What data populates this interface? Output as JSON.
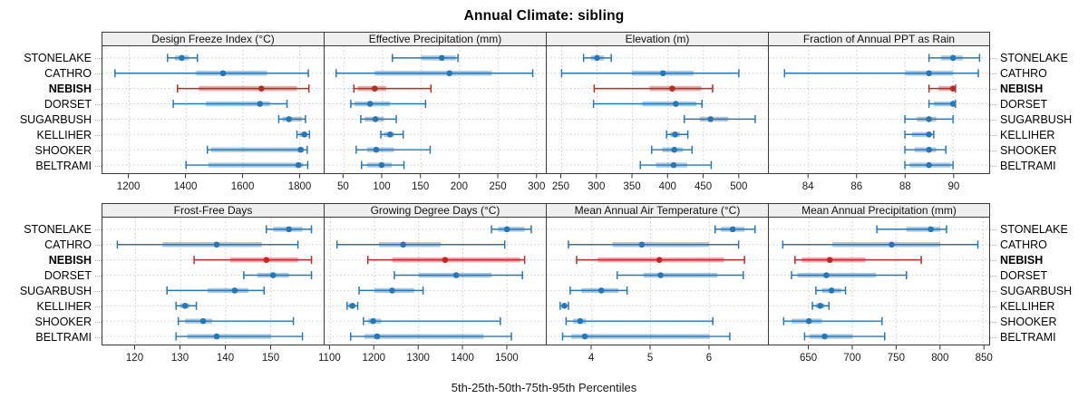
{
  "title": "Annual Climate: sibling",
  "caption": "5th-25th-50th-75th-95th Percentiles",
  "stations": [
    "STONELAKE",
    "CATHRO",
    "NEBISH",
    "DORSET",
    "SUGARBUSH",
    "KELLIHER",
    "SHOOKER",
    "BELTRAMI"
  ],
  "highlight_station": "NEBISH",
  "colors": {
    "series_normal": "#2677b5",
    "series_highlight": "#bb2a24",
    "strip_bg": "#efefef",
    "panel_border": "#3a3a3a",
    "grid": "#c9c9c9",
    "leader_dots": "#b4b4b4",
    "axis_text": "#1a1a1a"
  },
  "chart_data": [
    {
      "type": "scatter",
      "style": "percentile-interval",
      "row": 0,
      "title": "Design Freeze Index (°C)",
      "percentiles": [
        "5th",
        "25th",
        "50th",
        "75th",
        "95th"
      ],
      "xlim": [
        1106,
        1884
      ],
      "xticks": [
        1200,
        1400,
        1600,
        1800
      ],
      "values": {
        "STONELAKE": [
          1335,
          1360,
          1385,
          1410,
          1440
        ],
        "CATHRO": [
          1150,
          1435,
          1530,
          1685,
          1830
        ],
        "NEBISH": [
          1370,
          1445,
          1665,
          1790,
          1832
        ],
        "DORSET": [
          1355,
          1470,
          1660,
          1695,
          1755
        ],
        "SUGARBUSH": [
          1726,
          1739,
          1762,
          1807,
          1820
        ],
        "KELLIHER": [
          1790,
          1800,
          1816,
          1826,
          1834
        ],
        "SHOOKER": [
          1475,
          1487,
          1803,
          1814,
          1826
        ],
        "BELTRAMI": [
          1400,
          1478,
          1795,
          1812,
          1828
        ]
      }
    },
    {
      "type": "scatter",
      "style": "percentile-interval",
      "row": 0,
      "title": "Effective Precipitation (mm)",
      "percentiles": [
        "5th",
        "25th",
        "50th",
        "75th",
        "95th"
      ],
      "xlim": [
        25,
        312
      ],
      "xticks": [
        50,
        100,
        150,
        200,
        250,
        300
      ],
      "values": {
        "STONELAKE": [
          113,
          150,
          177,
          195,
          198
        ],
        "CATHRO": [
          40,
          90,
          187,
          242,
          295
        ],
        "NEBISH": [
          63,
          68,
          90,
          105,
          163
        ],
        "DORSET": [
          59,
          64,
          84,
          110,
          156
        ],
        "SUGARBUSH": [
          72,
          77,
          91,
          102,
          118
        ],
        "KELLIHER": [
          98,
          102,
          110,
          115,
          127
        ],
        "SHOOKER": [
          66,
          80,
          92,
          115,
          162
        ],
        "BELTRAMI": [
          73,
          80,
          99,
          112,
          128
        ]
      }
    },
    {
      "type": "scatter",
      "style": "percentile-interval",
      "row": 0,
      "title": "Elevation (m)",
      "percentiles": [
        "5th",
        "25th",
        "50th",
        "75th",
        "95th"
      ],
      "xlim": [
        229,
        541
      ],
      "xticks": [
        250,
        300,
        350,
        400,
        450,
        500
      ],
      "values": {
        "STONELAKE": [
          281,
          291,
          300,
          310,
          320
        ],
        "CATHRO": [
          250,
          349,
          393,
          436,
          500
        ],
        "NEBISH": [
          296,
          374,
          406,
          447,
          463
        ],
        "DORSET": [
          295,
          364,
          411,
          440,
          448
        ],
        "SUGARBUSH": [
          423,
          445,
          460,
          485,
          523
        ],
        "KELLIHER": [
          398,
          403,
          410,
          417,
          428
        ],
        "SHOOKER": [
          377,
          392,
          409,
          421,
          434
        ],
        "BELTRAMI": [
          361,
          383,
          408,
          427,
          461
        ]
      }
    },
    {
      "type": "scatter",
      "style": "percentile-interval",
      "row": 0,
      "title": "Fraction of Annual PPT as Rain",
      "percentiles": [
        "5th",
        "25th",
        "50th",
        "75th",
        "95th"
      ],
      "xlim": [
        82.35,
        91.5
      ],
      "xticks": [
        84,
        86,
        88,
        90
      ],
      "values": {
        "STONELAKE": [
          89,
          89.5,
          90,
          90.4,
          91.1
        ],
        "CATHRO": [
          83,
          88,
          89,
          90,
          91.05
        ],
        "NEBISH": [
          89,
          89.4,
          90,
          90,
          90.1
        ],
        "DORSET": [
          89,
          89.2,
          90,
          90,
          90.1
        ],
        "SUGARBUSH": [
          88,
          88.5,
          89,
          89.3,
          90
        ],
        "KELLIHER": [
          88,
          88.3,
          89,
          89,
          89.2
        ],
        "SHOOKER": [
          88,
          88.4,
          89,
          89.3,
          89.7
        ],
        "BELTRAMI": [
          88,
          88.2,
          89,
          89.9,
          90
        ]
      }
    },
    {
      "type": "scatter",
      "style": "percentile-interval",
      "row": 1,
      "title": "Frost-Free Days",
      "percentiles": [
        "5th",
        "25th",
        "50th",
        "75th",
        "95th"
      ],
      "xlim": [
        112.7,
        161.7
      ],
      "xticks": [
        120,
        130,
        140,
        150
      ],
      "values": {
        "STONELAKE": [
          149,
          150.5,
          154,
          157,
          159
        ],
        "CATHRO": [
          116,
          126,
          138,
          148,
          156
        ],
        "NEBISH": [
          133,
          141,
          149,
          156,
          159
        ],
        "DORSET": [
          144,
          147,
          150.5,
          154,
          159
        ],
        "SUGARBUSH": [
          127,
          136,
          142,
          145,
          148.5
        ],
        "KELLIHER": [
          129,
          130,
          131,
          132,
          133.5
        ],
        "SHOOKER": [
          129.5,
          131,
          135,
          137,
          155
        ],
        "BELTRAMI": [
          129,
          131.5,
          138,
          150,
          157
        ]
      }
    },
    {
      "type": "scatter",
      "style": "percentile-interval",
      "row": 1,
      "title": "Growing Degree Days (°C)",
      "percentiles": [
        "5th",
        "25th",
        "50th",
        "75th",
        "95th"
      ],
      "xlim": [
        1087,
        1588
      ],
      "xticks": [
        1100,
        1200,
        1300,
        1400,
        1500
      ],
      "values": {
        "STONELAKE": [
          1465,
          1480,
          1500,
          1540,
          1555
        ],
        "CATHRO": [
          1115,
          1210,
          1265,
          1350,
          1495
        ],
        "NEBISH": [
          1185,
          1240,
          1360,
          1530,
          1540
        ],
        "DORSET": [
          1245,
          1300,
          1385,
          1465,
          1535
        ],
        "SUGARBUSH": [
          1165,
          1200,
          1240,
          1290,
          1310
        ],
        "KELLIHER": [
          1138,
          1142,
          1150,
          1156,
          1162
        ],
        "SHOOKER": [
          1175,
          1185,
          1197,
          1215,
          1485
        ],
        "BELTRAMI": [
          1146,
          1177,
          1206,
          1447,
          1510
        ]
      }
    },
    {
      "type": "scatter",
      "style": "percentile-interval",
      "row": 1,
      "title": "Mean Annual Air Temperature (°C)",
      "percentiles": [
        "5th",
        "25th",
        "50th",
        "75th",
        "95th"
      ],
      "xlim": [
        3.23,
        7.0
      ],
      "xticks": [
        4,
        5,
        6
      ],
      "values": {
        "STONELAKE": [
          6.1,
          6.2,
          6.4,
          6.6,
          6.78
        ],
        "CATHRO": [
          3.6,
          4.35,
          4.85,
          6.0,
          6.5
        ],
        "NEBISH": [
          3.74,
          4.1,
          5.15,
          6.25,
          6.6
        ],
        "DORSET": [
          4.43,
          4.88,
          5.17,
          6.14,
          6.58
        ],
        "SUGARBUSH": [
          3.63,
          3.82,
          4.16,
          4.45,
          4.6
        ],
        "KELLIHER": [
          3.46,
          3.5,
          3.53,
          3.57,
          3.6
        ],
        "SHOOKER": [
          3.56,
          3.68,
          3.8,
          3.9,
          6.06
        ],
        "BELTRAMI": [
          3.5,
          3.65,
          3.88,
          6.0,
          6.35
        ]
      }
    },
    {
      "type": "scatter",
      "style": "percentile-interval",
      "row": 1,
      "title": "Mean Annual Precipitation (mm)",
      "percentiles": [
        "5th",
        "25th",
        "50th",
        "75th",
        "95th"
      ],
      "xlim": [
        604,
        857
      ],
      "xticks": [
        650,
        700,
        750,
        800,
        850
      ],
      "values": {
        "STONELAKE": [
          728,
          762,
          790,
          801,
          808
        ],
        "CATHRO": [
          620,
          677,
          745,
          801,
          844
        ],
        "NEBISH": [
          634,
          642,
          674,
          715,
          779
        ],
        "DORSET": [
          630,
          637,
          670,
          727,
          762
        ],
        "SUGARBUSH": [
          658,
          665,
          676,
          687,
          692
        ],
        "KELLIHER": [
          654,
          658,
          663,
          668,
          673
        ],
        "SHOOKER": [
          621,
          630,
          650,
          665,
          734
        ],
        "BELTRAMI": [
          645,
          651,
          668,
          700,
          737
        ]
      }
    }
  ]
}
